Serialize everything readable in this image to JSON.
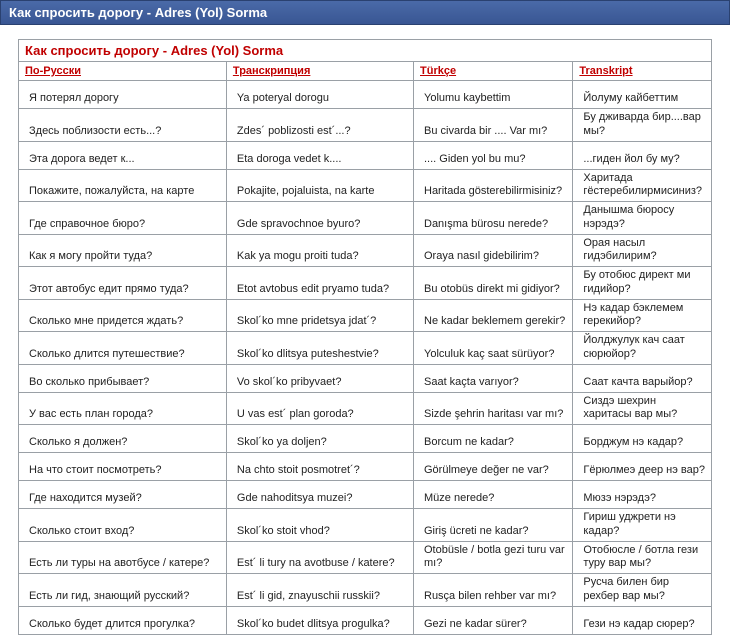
{
  "page_title": "Как спросить дорогу - Adres (Yol) Sorma",
  "table_title": "Как спросить дорогу - Adres (Yol) Sorma",
  "columns": [
    {
      "key": "ru",
      "label": "По-Русски"
    },
    {
      "key": "trans",
      "label": "Транскрипция"
    },
    {
      "key": "tr",
      "label": "Türkçe"
    },
    {
      "key": "tk",
      "label": "Transkript"
    }
  ],
  "rows": [
    {
      "ru": "Я потерял дорогу",
      "trans": "Ya poteryal dorogu",
      "tr": "Yolumu kaybettim",
      "tk": "Йолуму кайбеттим"
    },
    {
      "ru": "Здесь поблизости есть...?",
      "trans": "Zdes´ poblizosti est´...?",
      "tr": "Bu civarda bir .... Var mı?",
      "tk": "Бу дживарда бир....вар мы?"
    },
    {
      "ru": "Эта дорога ведет к...",
      "trans": "Eta doroga vedet k....",
      "tr": ".... Giden yol bu mu?",
      "tk": "...гиден йол бу му?"
    },
    {
      "ru": "Покажите, пожалуйста, на карте",
      "trans": "Pokajite, pojaluista, na karte",
      "tr": "Haritada gösterebilirmisiniz?",
      "tk": "Харитада гёстеребилирмисиниз?"
    },
    {
      "ru": "Где справочное бюро?",
      "trans": "Gde spravochnoe byuro?",
      "tr": "Danışma bürosu nerede?",
      "tk": "Данышма бюросу нэрэдэ?"
    },
    {
      "ru": "Как я могу пройти туда?",
      "trans": "Kak ya mogu proiti tuda?",
      "tr": "Oraya nasıl gidebilirim?",
      "tk": "Орая насыл гидэбилирим?"
    },
    {
      "ru": "Этот автобус едит прямо туда?",
      "trans": "Etot avtobus edit pryamo tuda?",
      "tr": "Bu otobüs direkt mi gidiyor?",
      "tk": "Бу отобюс директ ми гидийор?"
    },
    {
      "ru": "Сколько мне придется ждать?",
      "trans": "Skol´ko mne pridetsya jdat´?",
      "tr": "Ne kadar beklemem gerekir?",
      "tk": "Нэ кадар бэклемем герекийор?"
    },
    {
      "ru": "Сколько длится путешествие?",
      "trans": "Skol´ko dlitsya puteshestvie?",
      "tr": "Yolculuk kaç saat sürüyor?",
      "tk": "Йолджулук кач саат сюрюйор?"
    },
    {
      "ru": "Во сколько прибывает?",
      "trans": "Vo skol´ko pribyvaet?",
      "tr": "Saat kaçta varıyor?",
      "tk": "Саат качта варыйор?"
    },
    {
      "ru": "У вас есть план города?",
      "trans": "U vas est´ plan goroda?",
      "tr": "Sizde şehrin haritası var mı?",
      "tk": "Сиздэ шехрин харитасы вар мы?"
    },
    {
      "ru": "Сколько я должен?",
      "trans": "Skol´ko ya doljen?",
      "tr": "Borcum ne kadar?",
      "tk": "Борджум нэ кадар?"
    },
    {
      "ru": "На что стоит посмотреть?",
      "trans": "Na chto stoit posmotret´?",
      "tr": "Görülmeye değer ne var?",
      "tk": "Гёрюлмеэ деер нэ вар?"
    },
    {
      "ru": "Где находится музей?",
      "trans": "Gde nahoditsya muzei?",
      "tr": "Müze nerede?",
      "tk": "Мюзэ нэрэдэ?"
    },
    {
      "ru": "Сколько стоит вход?",
      "trans": "Skol´ko stoit vhod?",
      "tr": "Giriş ücreti ne kadar?",
      "tk": "Гириш уджрети нэ кадар?"
    },
    {
      "ru": "Есть ли туры на авотбусе / катере?",
      "trans": "Est´ li tury na avotbuse / katere?",
      "tr": "Otobüsle / botla gezi turu var mı?",
      "tk": "Отобюсле / ботла гези туру вар мы?"
    },
    {
      "ru": "Есть ли гид, знающий русский?",
      "trans": "Est´ li gid, znayuschii russkii?",
      "tr": "Rusça bilen rehber var mı?",
      "tk": "Русча билен бир рехбер вар мы?"
    },
    {
      "ru": "Сколько будет длится прогулка?",
      "trans": "Skol´ko budet dlitsya progulka?",
      "tr": "Gezi ne kadar sürer?",
      "tk": "Гези нэ кадар сюрер?"
    }
  ],
  "colors": {
    "header_bg": "#3b5998",
    "accent": "#c00000",
    "border": "#9aa0a6",
    "text": "#222222"
  }
}
